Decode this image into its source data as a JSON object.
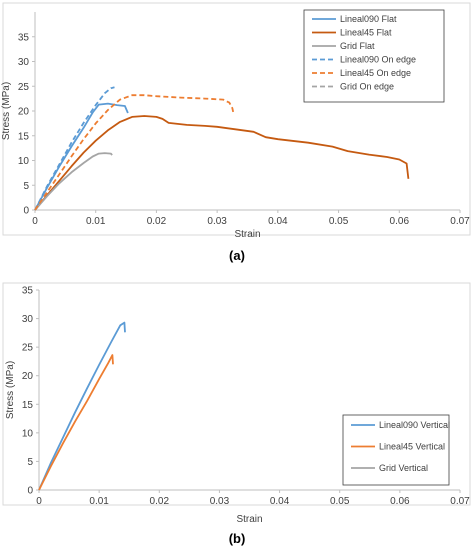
{
  "chart_data": [
    {
      "type": "line",
      "panel_label": "(a)",
      "xlabel": "Strain",
      "ylabel": "Stress (MPa)",
      "xlim": [
        0,
        0.07
      ],
      "ylim": [
        0,
        40
      ],
      "xticks": [
        0,
        0.01,
        0.02,
        0.03,
        0.04,
        0.05,
        0.06,
        0.07
      ],
      "yticks": [
        0,
        5,
        10,
        15,
        20,
        25,
        30,
        35
      ],
      "xtick_labels": [
        "0",
        "0.01",
        "0.02",
        "0.03",
        "0.04",
        "0.05",
        "0.06",
        "0.07"
      ],
      "ytick_labels": [
        "0",
        "5",
        "10",
        "15",
        "20",
        "25",
        "30",
        "35"
      ],
      "grid": "none",
      "legend_position": "top-right",
      "series": [
        {
          "name": "Lineal090 Flat",
          "color": "#5B9BD5",
          "dash": "solid",
          "points": [
            [
              0,
              0
            ],
            [
              0.002,
              4.5
            ],
            [
              0.004,
              8.8
            ],
            [
              0.006,
              12.8
            ],
            [
              0.008,
              16.6
            ],
            [
              0.0095,
              19.7
            ],
            [
              0.0105,
              21.3
            ],
            [
              0.012,
              21.5
            ],
            [
              0.0135,
              21.2
            ],
            [
              0.0148,
              21.0
            ],
            [
              0.0153,
              19.6
            ]
          ]
        },
        {
          "name": "Lineal45 Flat",
          "color": "#C55A11",
          "dash": "solid",
          "points": [
            [
              0,
              0
            ],
            [
              0.002,
              3.0
            ],
            [
              0.004,
              5.9
            ],
            [
              0.006,
              8.8
            ],
            [
              0.008,
              11.6
            ],
            [
              0.01,
              14.0
            ],
            [
              0.012,
              16.1
            ],
            [
              0.014,
              17.8
            ],
            [
              0.016,
              18.8
            ],
            [
              0.018,
              19.0
            ],
            [
              0.02,
              18.8
            ],
            [
              0.021,
              18.4
            ],
            [
              0.022,
              17.6
            ],
            [
              0.025,
              17.2
            ],
            [
              0.028,
              17.0
            ],
            [
              0.03,
              16.8
            ],
            [
              0.033,
              16.3
            ],
            [
              0.036,
              15.8
            ],
            [
              0.038,
              14.7
            ],
            [
              0.04,
              14.3
            ],
            [
              0.045,
              13.6
            ],
            [
              0.049,
              12.8
            ],
            [
              0.0515,
              11.9
            ],
            [
              0.055,
              11.2
            ],
            [
              0.058,
              10.7
            ],
            [
              0.06,
              10.2
            ],
            [
              0.0612,
              9.4
            ],
            [
              0.0615,
              6.3
            ]
          ]
        },
        {
          "name": "Grid Flat",
          "color": "#A5A5A5",
          "dash": "solid",
          "points": [
            [
              0,
              0
            ],
            [
              0.002,
              2.8
            ],
            [
              0.004,
              5.4
            ],
            [
              0.006,
              7.6
            ],
            [
              0.008,
              9.5
            ],
            [
              0.0095,
              10.8
            ],
            [
              0.0105,
              11.4
            ],
            [
              0.0115,
              11.5
            ],
            [
              0.0125,
              11.4
            ],
            [
              0.0127,
              11.1
            ]
          ]
        },
        {
          "name": "Lineal090 On edge",
          "color": "#5B9BD5",
          "dash": "dashed",
          "points": [
            [
              0,
              0
            ],
            [
              0.002,
              4.8
            ],
            [
              0.004,
              9.2
            ],
            [
              0.006,
              13.6
            ],
            [
              0.008,
              17.6
            ],
            [
              0.01,
              21.2
            ],
            [
              0.0115,
              23.6
            ],
            [
              0.0125,
              24.6
            ],
            [
              0.0131,
              24.8
            ]
          ]
        },
        {
          "name": "Lineal45 On edge",
          "color": "#ED7D31",
          "dash": "dashed",
          "points": [
            [
              0,
              0
            ],
            [
              0.002,
              3.6
            ],
            [
              0.004,
              7.2
            ],
            [
              0.006,
              10.8
            ],
            [
              0.008,
              14.3
            ],
            [
              0.01,
              17.5
            ],
            [
              0.012,
              20.2
            ],
            [
              0.014,
              22.3
            ],
            [
              0.016,
              23.2
            ],
            [
              0.018,
              23.2
            ],
            [
              0.02,
              23.0
            ],
            [
              0.024,
              22.7
            ],
            [
              0.028,
              22.5
            ],
            [
              0.031,
              22.3
            ],
            [
              0.032,
              21.7
            ],
            [
              0.0325,
              20.6
            ],
            [
              0.0327,
              19.5
            ]
          ]
        },
        {
          "name": "Grid On edge",
          "color": "#A5A5A5",
          "dash": "dashed",
          "points": []
        }
      ]
    },
    {
      "type": "line",
      "panel_label": "(b)",
      "xlabel": "Strain",
      "ylabel": "Stress (MPa)",
      "xlim": [
        0,
        0.07
      ],
      "ylim": [
        0,
        35
      ],
      "xticks": [
        0,
        0.01,
        0.02,
        0.03,
        0.04,
        0.05,
        0.06,
        0.07
      ],
      "yticks": [
        0,
        5,
        10,
        15,
        20,
        25,
        30,
        35
      ],
      "xtick_labels": [
        "0",
        "0.01",
        "0.02",
        "0.03",
        "0.04",
        "0.05",
        "0.06",
        "0.07"
      ],
      "ytick_labels": [
        "0",
        "5",
        "10",
        "15",
        "20",
        "25",
        "30",
        "35"
      ],
      "grid": "none",
      "legend_position": "bottom-right",
      "series": [
        {
          "name": "Lineal090 Vertical",
          "color": "#5B9BD5",
          "dash": "solid",
          "points": [
            [
              0,
              0
            ],
            [
              0.002,
              4.8
            ],
            [
              0.004,
              9.2
            ],
            [
              0.006,
              13.6
            ],
            [
              0.008,
              17.8
            ],
            [
              0.01,
              21.9
            ],
            [
              0.012,
              25.9
            ],
            [
              0.0135,
              28.8
            ],
            [
              0.0142,
              29.3
            ],
            [
              0.0143,
              27.6
            ]
          ]
        },
        {
          "name": "Lineal45 Vertical",
          "color": "#ED7D31",
          "dash": "solid",
          "points": [
            [
              0,
              0
            ],
            [
              0.002,
              4.2
            ],
            [
              0.004,
              8.2
            ],
            [
              0.006,
              12.0
            ],
            [
              0.008,
              15.6
            ],
            [
              0.01,
              19.4
            ],
            [
              0.0115,
              22.2
            ],
            [
              0.0122,
              23.6
            ],
            [
              0.0123,
              22.0
            ]
          ]
        },
        {
          "name": "Grid Vertical",
          "color": "#A5A5A5",
          "dash": "solid",
          "points": []
        }
      ]
    }
  ]
}
